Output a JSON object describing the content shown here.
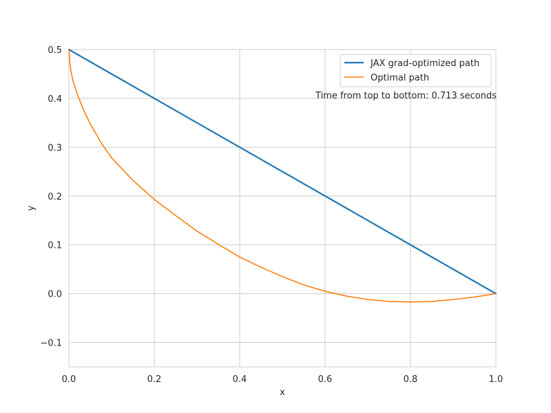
{
  "chart_data": {
    "type": "line",
    "title": "",
    "xlabel": "x",
    "ylabel": "y",
    "xlim": [
      0.0,
      1.0
    ],
    "ylim": [
      -0.15,
      0.5
    ],
    "xticks": [
      "0.0",
      "0.2",
      "0.4",
      "0.6",
      "0.8",
      "1.0"
    ],
    "yticks": [
      "−0.1",
      "0.0",
      "0.1",
      "0.2",
      "0.3",
      "0.4",
      "0.5"
    ],
    "xtick_values": [
      0.0,
      0.2,
      0.4,
      0.6,
      0.8,
      1.0
    ],
    "ytick_values": [
      -0.1,
      0.0,
      0.1,
      0.2,
      0.3,
      0.4,
      0.5
    ],
    "grid": true,
    "legend_position": "top-right",
    "annotation": "Time from top to bottom: 0.713 seconds",
    "series": [
      {
        "name": "JAX grad-optimized path",
        "color": "#1f77b4",
        "x": [
          0.0,
          1.0
        ],
        "y": [
          0.5,
          0.0
        ]
      },
      {
        "name": "Optimal path",
        "color": "#ff7f0e",
        "x": [
          0.0,
          0.002,
          0.005,
          0.01,
          0.02,
          0.035,
          0.05,
          0.075,
          0.1,
          0.15,
          0.2,
          0.25,
          0.3,
          0.35,
          0.4,
          0.45,
          0.5,
          0.55,
          0.6,
          0.65,
          0.7,
          0.75,
          0.8,
          0.85,
          0.9,
          0.95,
          1.0
        ],
        "y": [
          0.5,
          0.475,
          0.455,
          0.435,
          0.408,
          0.375,
          0.348,
          0.31,
          0.278,
          0.232,
          0.193,
          0.16,
          0.128,
          0.101,
          0.075,
          0.054,
          0.035,
          0.018,
          0.005,
          -0.005,
          -0.012,
          -0.016,
          -0.017,
          -0.016,
          -0.012,
          -0.007,
          0.0
        ]
      }
    ]
  }
}
